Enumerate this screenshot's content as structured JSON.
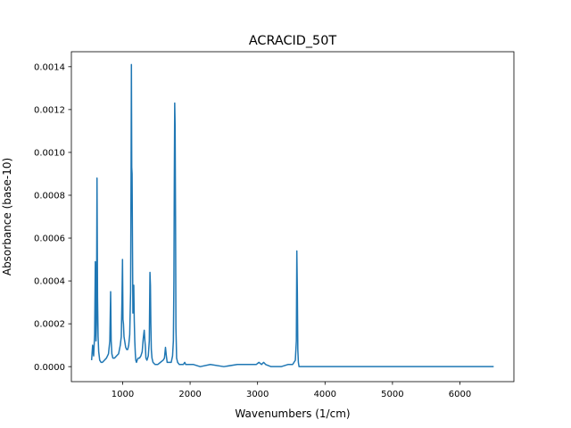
{
  "chart_data": {
    "type": "line",
    "title": "ACRACID_50T",
    "xlabel": "Wavenumbers (1/cm)",
    "ylabel": "Absorbance (base-10)",
    "xlim": [
      240,
      6800
    ],
    "ylim": [
      -7e-05,
      0.00147
    ],
    "xticks": [
      1000,
      2000,
      3000,
      4000,
      5000,
      6000
    ],
    "xtick_labels": [
      "1000",
      "2000",
      "3000",
      "4000",
      "5000",
      "6000"
    ],
    "yticks": [
      0,
      0.0002,
      0.0004,
      0.0006,
      0.0008,
      0.001,
      0.0012,
      0.0014
    ],
    "ytick_labels": [
      "0.0000",
      "0.0002",
      "0.0004",
      "0.0006",
      "0.0008",
      "0.0010",
      "0.0012",
      "0.0014"
    ],
    "grid": false,
    "legend": "none",
    "series": [
      {
        "color": "#1f77b4",
        "x": [
          540,
          555,
          570,
          585,
          595,
          605,
          612,
          620,
          628,
          636,
          645,
          660,
          680,
          700,
          730,
          760,
          790,
          810,
          822,
          830,
          840,
          855,
          880,
          910,
          940,
          965,
          980,
          990,
          998,
          1005,
          1012,
          1020,
          1030,
          1045,
          1060,
          1075,
          1090,
          1105,
          1118,
          1125,
          1130,
          1135,
          1140,
          1146,
          1152,
          1158,
          1165,
          1172,
          1180,
          1188,
          1195,
          1205,
          1215,
          1230,
          1250,
          1270,
          1290,
          1305,
          1320,
          1330,
          1338,
          1345,
          1360,
          1380,
          1395,
          1405,
          1412,
          1418,
          1425,
          1435,
          1450,
          1480,
          1520,
          1560,
          1600,
          1620,
          1635,
          1648,
          1660,
          1680,
          1700,
          1720,
          1740,
          1752,
          1760,
          1766,
          1772,
          1778,
          1784,
          1790,
          1800,
          1815,
          1840,
          1870,
          1900,
          1920,
          1935,
          1950,
          1980,
          2050,
          2150,
          2300,
          2500,
          2700,
          2900,
          2980,
          3020,
          3060,
          3090,
          3120,
          3200,
          3350,
          3450,
          3520,
          3560,
          3575,
          3582,
          3590,
          3597,
          3605,
          3615,
          3640,
          3700,
          3900,
          4200,
          4600,
          5000,
          5400,
          5800,
          6200,
          6500
        ],
        "y": [
          3e-05,
          0.0001,
          5e-05,
          0.00015,
          0.00049,
          0.00012,
          0.0002,
          0.00088,
          0.00032,
          0.00014,
          7e-05,
          3e-05,
          2e-05,
          2e-05,
          3e-05,
          4e-05,
          6e-05,
          0.00012,
          0.00035,
          0.00012,
          6e-05,
          4e-05,
          4e-05,
          5e-05,
          6e-05,
          0.0001,
          0.00014,
          0.00031,
          0.0005,
          0.00022,
          0.0002,
          0.00014,
          0.00012,
          9e-05,
          8e-05,
          8e-05,
          0.0001,
          0.00015,
          0.00035,
          0.0009,
          0.00141,
          0.00093,
          0.0009,
          0.00055,
          0.00025,
          0.00034,
          0.00038,
          0.00022,
          0.00012,
          6e-05,
          3e-05,
          2e-05,
          3e-05,
          4e-05,
          4e-05,
          5e-05,
          7e-05,
          0.00013,
          0.00017,
          0.00012,
          9e-05,
          4e-05,
          3e-05,
          5e-05,
          0.00012,
          0.00044,
          0.00038,
          0.0002,
          8e-05,
          4e-05,
          2e-05,
          1e-05,
          1e-05,
          2e-05,
          3e-05,
          4e-05,
          9e-05,
          5e-05,
          2e-05,
          2e-05,
          2e-05,
          2e-05,
          5e-05,
          0.00012,
          0.0004,
          0.00088,
          0.00123,
          0.00112,
          0.0007,
          0.00018,
          4e-05,
          2e-05,
          1e-05,
          1e-05,
          1e-05,
          2e-05,
          1e-05,
          1e-05,
          1e-05,
          1e-05,
          0.0,
          1e-05,
          0.0,
          1e-05,
          1e-05,
          1e-05,
          2e-05,
          1e-05,
          2e-05,
          1e-05,
          0.0,
          0.0,
          1e-05,
          1e-05,
          3e-05,
          0.00012,
          0.00054,
          0.00035,
          8e-05,
          2e-05,
          0.0,
          0.0,
          0.0,
          0.0,
          0.0,
          0.0,
          0.0,
          0.0,
          0.0,
          0.0,
          0.0
        ]
      }
    ]
  }
}
